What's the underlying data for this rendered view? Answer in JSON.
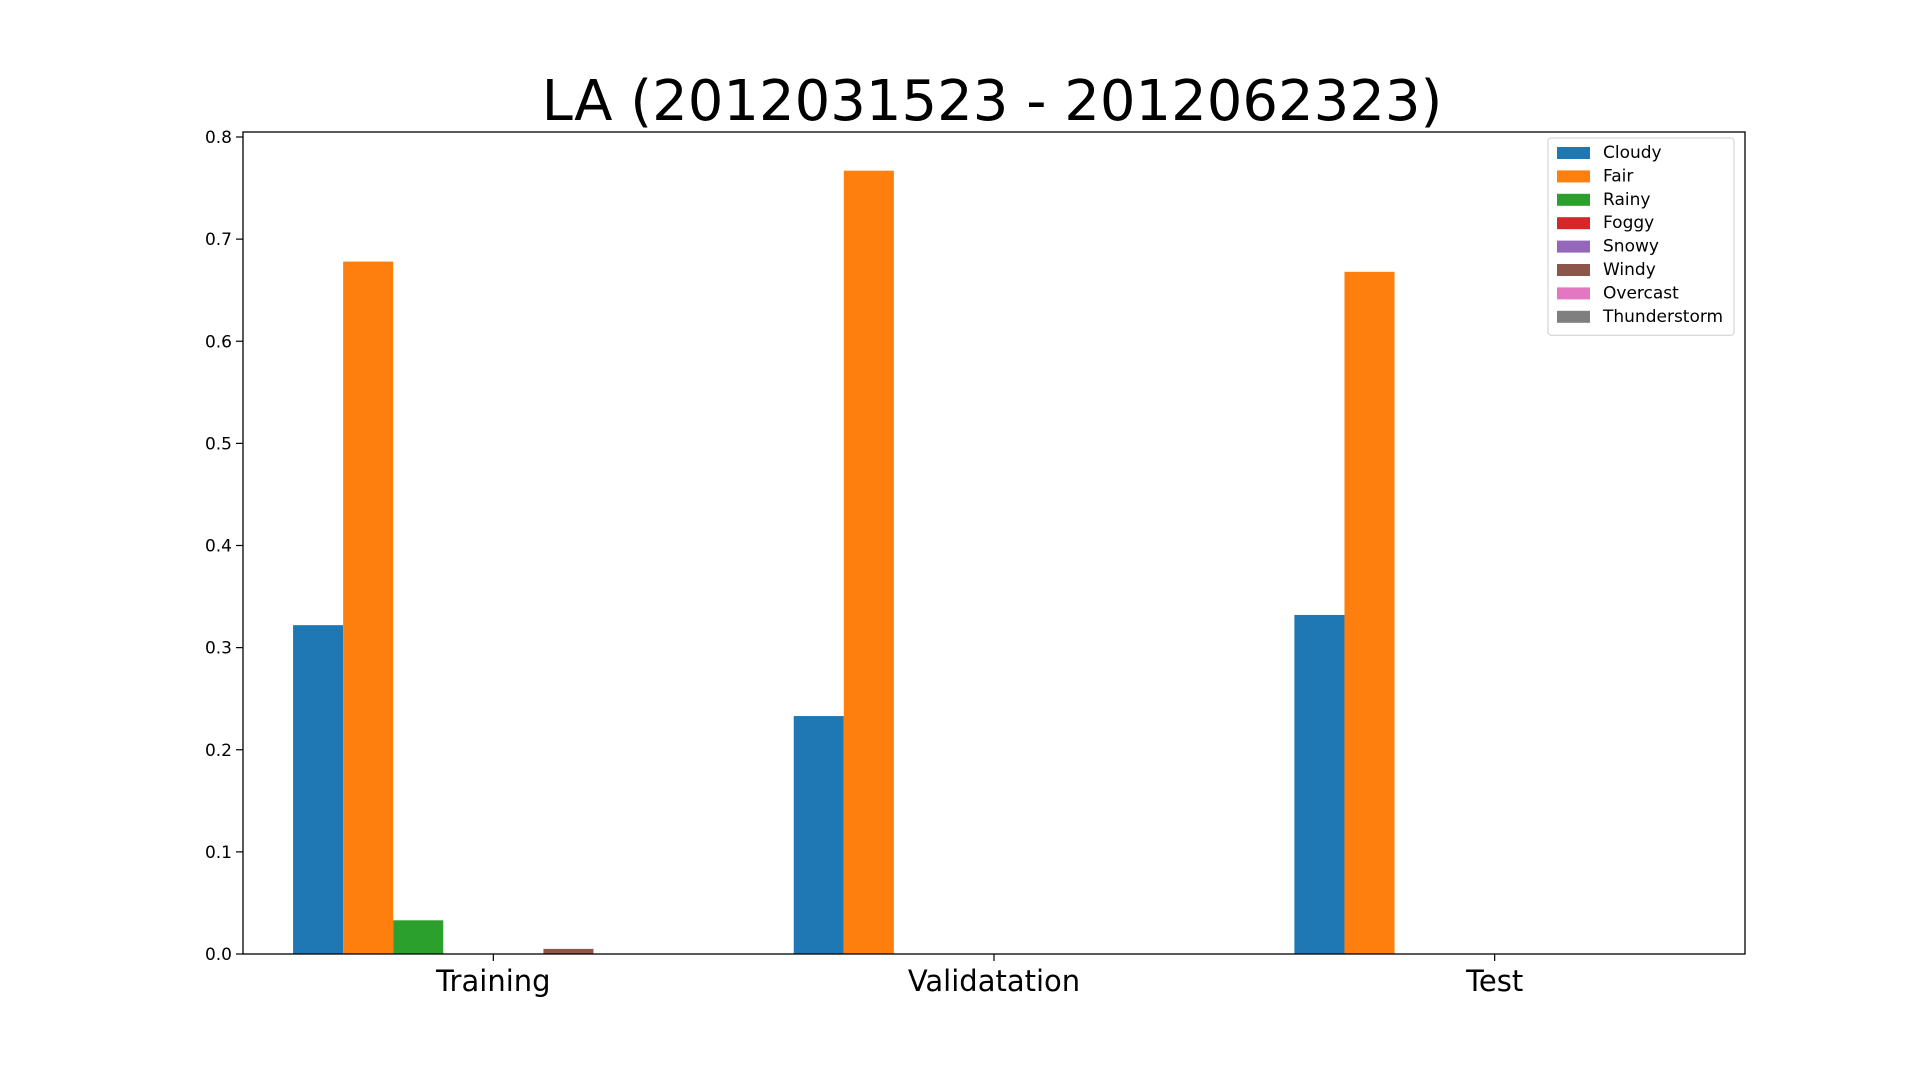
{
  "chart_data": {
    "type": "bar",
    "title": "LA (2012031523 - 2012062323)",
    "xlabel": "",
    "ylabel": "",
    "categories": [
      "Training",
      "Validatation",
      "Test"
    ],
    "ylim": [
      0,
      0.8
    ],
    "yticks": [
      "0.0",
      "0.1",
      "0.2",
      "0.3",
      "0.4",
      "0.5",
      "0.6",
      "0.7",
      "0.8"
    ],
    "grid": false,
    "legend_position": "top-right",
    "series": [
      {
        "name": "Cloudy",
        "color": "#1f77b4",
        "values": [
          0.322,
          0.233,
          0.332
        ]
      },
      {
        "name": "Fair",
        "color": "#ff7f0e",
        "values": [
          0.678,
          0.767,
          0.668
        ]
      },
      {
        "name": "Rainy",
        "color": "#2ca02c",
        "values": [
          0.033,
          0,
          0
        ]
      },
      {
        "name": "Foggy",
        "color": "#d62728",
        "values": [
          0,
          0,
          0
        ]
      },
      {
        "name": "Snowy",
        "color": "#9467bd",
        "values": [
          0,
          0,
          0
        ]
      },
      {
        "name": "Windy",
        "color": "#8c564b",
        "values": [
          0.005,
          0,
          0
        ]
      },
      {
        "name": "Overcast",
        "color": "#e377c2",
        "values": [
          0,
          0,
          0
        ]
      },
      {
        "name": "Thunderstorm",
        "color": "#7f7f7f",
        "values": [
          0,
          0,
          0
        ]
      }
    ]
  }
}
